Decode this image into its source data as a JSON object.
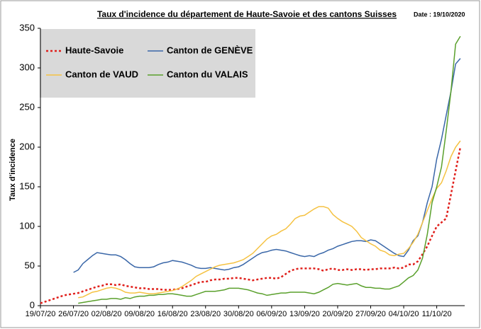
{
  "chart_data": {
    "type": "line",
    "title": "Taux d'incidence du département de Haute-Savoie et des cantons Suisses",
    "annotation": "Date : 19/10/2020",
    "y_label": "Taux d'incidence",
    "categories": [
      "19/07/20",
      null,
      null,
      null,
      null,
      null,
      null,
      "26/07/20",
      null,
      null,
      null,
      null,
      null,
      null,
      "02/08/20",
      null,
      null,
      null,
      null,
      null,
      null,
      "09/08/20",
      null,
      null,
      null,
      null,
      null,
      null,
      "16/08/20",
      null,
      null,
      null,
      null,
      null,
      null,
      "23/08/20",
      null,
      null,
      null,
      null,
      null,
      null,
      "30/08/20",
      null,
      null,
      null,
      null,
      null,
      null,
      "06/09/20",
      null,
      null,
      null,
      null,
      null,
      null,
      "13/09/20",
      null,
      null,
      null,
      null,
      null,
      null,
      "20/09/20",
      null,
      null,
      null,
      null,
      null,
      null,
      "27/09/20",
      null,
      null,
      null,
      null,
      null,
      null,
      "04/10/20",
      null,
      null,
      null,
      null,
      null,
      null,
      "11/10/20",
      null,
      null,
      null,
      null,
      null
    ],
    "series": [
      {
        "name": "Haute-Savoie",
        "color": "#e0201c",
        "dash": "dotted",
        "values": [
          3,
          5,
          7,
          9,
          11,
          13,
          14,
          15,
          16,
          18,
          20,
          22,
          24,
          25,
          27,
          27,
          26,
          27,
          25,
          24,
          23,
          22,
          22,
          21,
          21,
          21,
          20,
          20,
          20,
          21,
          22,
          24,
          26,
          28,
          30,
          30,
          32,
          33,
          33,
          34,
          34,
          35,
          35,
          34,
          33,
          32,
          33,
          34,
          35,
          35,
          34,
          36,
          40,
          44,
          46,
          47,
          47,
          47,
          47,
          46,
          44,
          46,
          47,
          45,
          45,
          46,
          45,
          46,
          46,
          45,
          46,
          46,
          47,
          47,
          47,
          48,
          47,
          48,
          52,
          52,
          56,
          65,
          75,
          88,
          100,
          105,
          110,
          140,
          170,
          200
        ]
      },
      {
        "name": "Canton de GENÈVE",
        "color": "#3a67a8",
        "values": [
          null,
          null,
          null,
          null,
          null,
          null,
          null,
          42,
          45,
          53,
          58,
          63,
          67,
          66,
          65,
          64,
          64,
          62,
          58,
          53,
          49,
          48,
          48,
          48,
          49,
          52,
          54,
          55,
          57,
          56,
          55,
          53,
          51,
          48,
          47,
          47,
          48,
          47,
          46,
          45,
          46,
          48,
          49,
          52,
          56,
          60,
          64,
          67,
          68,
          70,
          71,
          70,
          69,
          67,
          65,
          63,
          62,
          63,
          62,
          65,
          67,
          70,
          72,
          75,
          77,
          79,
          81,
          82,
          82,
          81,
          83,
          82,
          78,
          74,
          70,
          66,
          63,
          62,
          70,
          82,
          88,
          105,
          130,
          150,
          185,
          210,
          240,
          270,
          305,
          312
        ]
      },
      {
        "name": "Canton de VAUD",
        "color": "#f5c242",
        "values": [
          null,
          null,
          null,
          null,
          null,
          null,
          null,
          null,
          10,
          11,
          14,
          17,
          18,
          20,
          22,
          23,
          22,
          20,
          17,
          16,
          16,
          17,
          16,
          15,
          15,
          16,
          17,
          18,
          19,
          21,
          24,
          28,
          32,
          37,
          40,
          43,
          46,
          49,
          51,
          52,
          53,
          54,
          56,
          58,
          62,
          66,
          72,
          78,
          84,
          88,
          90,
          94,
          97,
          103,
          110,
          113,
          114,
          118,
          122,
          125,
          125,
          123,
          115,
          110,
          106,
          103,
          100,
          94,
          86,
          82,
          78,
          75,
          70,
          68,
          64,
          63,
          65,
          66,
          72,
          80,
          90,
          105,
          120,
          135,
          148,
          155,
          170,
          188,
          200,
          208
        ]
      },
      {
        "name": "Canton du VALAIS",
        "color": "#5aa02c",
        "values": [
          null,
          null,
          null,
          null,
          null,
          null,
          null,
          null,
          3,
          4,
          5,
          6,
          7,
          8,
          8,
          9,
          9,
          8,
          10,
          9,
          11,
          12,
          12,
          13,
          13,
          14,
          14,
          15,
          15,
          14,
          13,
          12,
          12,
          14,
          16,
          18,
          18,
          18,
          19,
          20,
          22,
          22,
          22,
          21,
          20,
          18,
          16,
          15,
          13,
          14,
          15,
          16,
          16,
          17,
          17,
          17,
          17,
          16,
          15,
          17,
          20,
          23,
          27,
          28,
          27,
          26,
          27,
          28,
          25,
          23,
          23,
          22,
          22,
          21,
          21,
          23,
          25,
          30,
          35,
          38,
          45,
          60,
          90,
          130,
          150,
          175,
          220,
          270,
          330,
          340
        ]
      }
    ],
    "ylim": [
      0,
      350
    ],
    "yticks": [
      0,
      50,
      100,
      150,
      200,
      250,
      300,
      350
    ],
    "legend": "upper left",
    "grid": false
  }
}
